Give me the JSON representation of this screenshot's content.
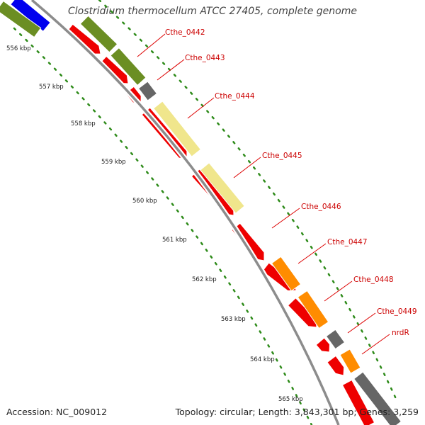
{
  "title": "Clostridium thermocellum ATCC 27405, complete genome",
  "accession": "Accession: NC_009012",
  "summary": "Topology: circular; Length: 3,843,301 bp; Genes: 3,259",
  "colors": {
    "backbone": "#8c8c8c",
    "dots": "#2e8b1a",
    "cds": "#ee0000",
    "blue": "#0000ee",
    "olive": "#6b8e23",
    "gray": "#666666",
    "khaki": "#f0e68c",
    "orange": "#ff8c00",
    "callout": "#dd0000"
  },
  "ticks": [
    "556 kbp",
    "557 kbp",
    "558 kbp",
    "559 kbp",
    "560 kbp",
    "561 kbp",
    "562 kbp",
    "563 kbp",
    "564 kbp",
    "565 kbp"
  ],
  "gene_labels": [
    "Cthe_0442",
    "Cthe_0443",
    "Cthe_0444",
    "Cthe_0445",
    "Cthe_0446",
    "Cthe_0447",
    "Cthe_0448",
    "Cthe_0449",
    "nrdR"
  ]
}
